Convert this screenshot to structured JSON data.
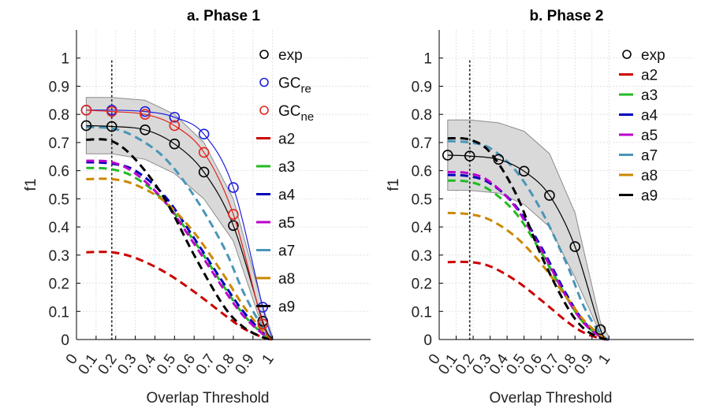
{
  "figure": {
    "background": "#ffffff"
  },
  "chart_data": [
    {
      "type": "line",
      "title": "a. Phase 1",
      "xlabel": "Overlap Threshold",
      "ylabel": "f1",
      "xlim": [
        0,
        1.5
      ],
      "ylim": [
        0,
        1.1
      ],
      "xticks": [
        "0",
        "0.1",
        "0.2",
        "0.3",
        "0.4",
        "0.5",
        "0.6",
        "0.7",
        "0.8",
        "0.9",
        "1"
      ],
      "yticks": [
        "0",
        "0.1",
        "0.2",
        "0.3",
        "0.4",
        "0.5",
        "0.6",
        "0.7",
        "0.8",
        "0.9",
        "1"
      ],
      "grid": true,
      "vline_x": 0.18,
      "legend_position": "top-right",
      "band": {
        "x": [
          0.05,
          0.18,
          0.35,
          0.5,
          0.65,
          0.8,
          0.95,
          1.0
        ],
        "upper": [
          0.86,
          0.86,
          0.85,
          0.8,
          0.7,
          0.5,
          0.12,
          0.01
        ],
        "lower": [
          0.66,
          0.66,
          0.64,
          0.59,
          0.5,
          0.35,
          0.04,
          0.0
        ]
      },
      "series": [
        {
          "name": "exp",
          "color": "#000000",
          "style": "solid-circles",
          "x": [
            0.05,
            0.18,
            0.35,
            0.5,
            0.65,
            0.8,
            0.95,
            1.0
          ],
          "y": [
            0.76,
            0.757,
            0.745,
            0.695,
            0.595,
            0.405,
            0.065,
            0.0
          ]
        },
        {
          "name": "GC_re",
          "color": "#1f1fdd",
          "style": "solid-circles",
          "x": [
            0.05,
            0.18,
            0.35,
            0.5,
            0.65,
            0.8,
            0.95,
            1.0
          ],
          "y": [
            0.815,
            0.815,
            0.81,
            0.79,
            0.73,
            0.54,
            0.115,
            0.0
          ]
        },
        {
          "name": "GC_ne",
          "color": "#e0261d",
          "style": "solid-circles",
          "x": [
            0.05,
            0.18,
            0.35,
            0.5,
            0.65,
            0.8,
            0.95,
            1.0
          ],
          "y": [
            0.815,
            0.81,
            0.8,
            0.76,
            0.665,
            0.445,
            0.055,
            0.0
          ]
        },
        {
          "name": "a2",
          "color": "#cc0000",
          "style": "dashed",
          "x": [
            0.05,
            0.18,
            0.3,
            0.45,
            0.6,
            0.75,
            0.85,
            0.95,
            1.0
          ],
          "y": [
            0.31,
            0.31,
            0.29,
            0.24,
            0.17,
            0.09,
            0.04,
            0.008,
            0.0
          ]
        },
        {
          "name": "a3",
          "color": "#22bb22",
          "style": "dashed",
          "x": [
            0.05,
            0.18,
            0.3,
            0.45,
            0.6,
            0.75,
            0.85,
            0.95,
            1.0
          ],
          "y": [
            0.61,
            0.605,
            0.575,
            0.49,
            0.35,
            0.19,
            0.09,
            0.02,
            0.0
          ]
        },
        {
          "name": "a4",
          "color": "#0000bb",
          "style": "dashed",
          "x": [
            0.05,
            0.18,
            0.3,
            0.45,
            0.6,
            0.75,
            0.85,
            0.95,
            1.0
          ],
          "y": [
            0.63,
            0.625,
            0.6,
            0.51,
            0.36,
            0.2,
            0.1,
            0.025,
            0.0
          ]
        },
        {
          "name": "a5",
          "color": "#bb00cc",
          "style": "dashed",
          "x": [
            0.05,
            0.18,
            0.3,
            0.45,
            0.6,
            0.75,
            0.85,
            0.95,
            1.0
          ],
          "y": [
            0.635,
            0.63,
            0.59,
            0.49,
            0.34,
            0.18,
            0.085,
            0.02,
            0.0
          ]
        },
        {
          "name": "a7",
          "color": "#4a95b8",
          "style": "dashed",
          "x": [
            0.05,
            0.18,
            0.3,
            0.45,
            0.6,
            0.75,
            0.85,
            0.95,
            1.0
          ],
          "y": [
            0.755,
            0.75,
            0.72,
            0.645,
            0.51,
            0.33,
            0.17,
            0.04,
            0.0
          ]
        },
        {
          "name": "a8",
          "color": "#cc8800",
          "style": "dashed",
          "x": [
            0.05,
            0.18,
            0.3,
            0.45,
            0.6,
            0.75,
            0.85,
            0.95,
            1.0
          ],
          "y": [
            0.57,
            0.57,
            0.55,
            0.49,
            0.38,
            0.23,
            0.12,
            0.03,
            0.0
          ]
        },
        {
          "name": "a9",
          "color": "#000000",
          "style": "dashed",
          "x": [
            0.05,
            0.18,
            0.3,
            0.45,
            0.6,
            0.75,
            0.85,
            0.95,
            1.0
          ],
          "y": [
            0.71,
            0.705,
            0.64,
            0.5,
            0.3,
            0.12,
            0.045,
            0.008,
            0.0
          ]
        }
      ]
    },
    {
      "type": "line",
      "title": "b. Phase 2",
      "xlabel": "Overlap Threshold",
      "ylabel": "f1",
      "xlim": [
        0,
        1.5
      ],
      "ylim": [
        0,
        1.1
      ],
      "xticks": [
        "0",
        "0.1",
        "0.2",
        "0.3",
        "0.4",
        "0.5",
        "0.6",
        "0.7",
        "0.8",
        "0.9",
        "1"
      ],
      "yticks": [
        "0",
        "0.1",
        "0.2",
        "0.3",
        "0.4",
        "0.5",
        "0.6",
        "0.7",
        "0.8",
        "0.9",
        "1"
      ],
      "grid": true,
      "vline_x": 0.18,
      "legend_position": "top-right",
      "band": {
        "x": [
          0.05,
          0.18,
          0.35,
          0.5,
          0.65,
          0.8,
          0.95,
          1.0
        ],
        "upper": [
          0.78,
          0.78,
          0.77,
          0.74,
          0.66,
          0.45,
          0.06,
          0.01
        ],
        "lower": [
          0.53,
          0.53,
          0.52,
          0.48,
          0.4,
          0.22,
          0.02,
          0.0
        ]
      },
      "series": [
        {
          "name": "exp",
          "color": "#000000",
          "style": "solid-circles",
          "x": [
            0.05,
            0.18,
            0.35,
            0.5,
            0.65,
            0.8,
            0.95,
            1.0
          ],
          "y": [
            0.655,
            0.652,
            0.64,
            0.598,
            0.512,
            0.33,
            0.035,
            0.0
          ]
        },
        {
          "name": "a2",
          "color": "#cc0000",
          "style": "dashed",
          "x": [
            0.05,
            0.18,
            0.3,
            0.45,
            0.6,
            0.75,
            0.85,
            0.95,
            1.0
          ],
          "y": [
            0.275,
            0.275,
            0.26,
            0.21,
            0.14,
            0.065,
            0.025,
            0.004,
            0.0
          ]
        },
        {
          "name": "a3",
          "color": "#22bb22",
          "style": "dashed",
          "x": [
            0.05,
            0.18,
            0.3,
            0.45,
            0.6,
            0.75,
            0.85,
            0.95,
            1.0
          ],
          "y": [
            0.565,
            0.56,
            0.53,
            0.45,
            0.31,
            0.15,
            0.06,
            0.01,
            0.0
          ]
        },
        {
          "name": "a4",
          "color": "#0000bb",
          "style": "dashed",
          "x": [
            0.05,
            0.18,
            0.3,
            0.45,
            0.6,
            0.75,
            0.85,
            0.95,
            1.0
          ],
          "y": [
            0.585,
            0.58,
            0.555,
            0.475,
            0.33,
            0.16,
            0.065,
            0.01,
            0.0
          ]
        },
        {
          "name": "a5",
          "color": "#bb00cc",
          "style": "dashed",
          "x": [
            0.05,
            0.18,
            0.3,
            0.45,
            0.6,
            0.75,
            0.85,
            0.95,
            1.0
          ],
          "y": [
            0.595,
            0.59,
            0.56,
            0.47,
            0.32,
            0.15,
            0.06,
            0.01,
            0.0
          ]
        },
        {
          "name": "a7",
          "color": "#4a95b8",
          "style": "dashed",
          "x": [
            0.05,
            0.18,
            0.3,
            0.45,
            0.6,
            0.75,
            0.85,
            0.95,
            1.0
          ],
          "y": [
            0.705,
            0.7,
            0.68,
            0.6,
            0.46,
            0.27,
            0.12,
            0.02,
            0.0
          ]
        },
        {
          "name": "a8",
          "color": "#cc8800",
          "style": "dashed",
          "x": [
            0.05,
            0.18,
            0.3,
            0.45,
            0.6,
            0.75,
            0.85,
            0.95,
            1.0
          ],
          "y": [
            0.45,
            0.445,
            0.425,
            0.365,
            0.27,
            0.15,
            0.07,
            0.015,
            0.0
          ]
        },
        {
          "name": "a9",
          "color": "#000000",
          "style": "dashed",
          "x": [
            0.05,
            0.18,
            0.3,
            0.45,
            0.6,
            0.75,
            0.85,
            0.95,
            1.0
          ],
          "y": [
            0.715,
            0.71,
            0.665,
            0.52,
            0.3,
            0.12,
            0.04,
            0.006,
            0.0
          ]
        }
      ]
    }
  ]
}
